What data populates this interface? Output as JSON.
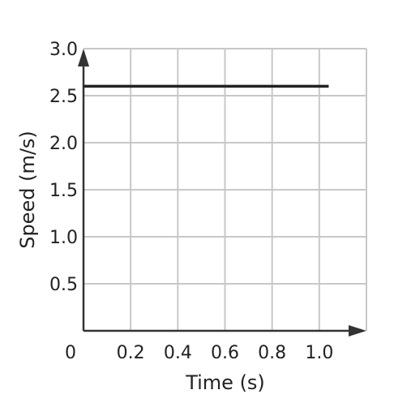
{
  "chart_data": {
    "type": "line",
    "xlabel": "Time (s)",
    "ylabel": "Speed (m/s)",
    "xlim": [
      0,
      1.2
    ],
    "ylim": [
      0,
      3.0
    ],
    "origin_label": "0",
    "x_ticks": [
      {
        "value": 0.2,
        "label": "0.2"
      },
      {
        "value": 0.4,
        "label": "0.4"
      },
      {
        "value": 0.6,
        "label": "0.6"
      },
      {
        "value": 0.8,
        "label": "0.8"
      },
      {
        "value": 1.0,
        "label": "1.0"
      }
    ],
    "y_ticks": [
      {
        "value": 0.5,
        "label": "0.5"
      },
      {
        "value": 1.0,
        "label": "1.0"
      },
      {
        "value": 1.5,
        "label": "1.5"
      },
      {
        "value": 2.0,
        "label": "2.0"
      },
      {
        "value": 2.5,
        "label": "2.5"
      },
      {
        "value": 3.0,
        "label": "3.0"
      }
    ],
    "series": [
      {
        "x": [
          0,
          1.04
        ],
        "y": [
          2.6,
          2.6
        ]
      }
    ],
    "grid": true,
    "colors": {
      "grid": "#c8c8c8",
      "axis": "#333333",
      "line": "#222222"
    }
  }
}
